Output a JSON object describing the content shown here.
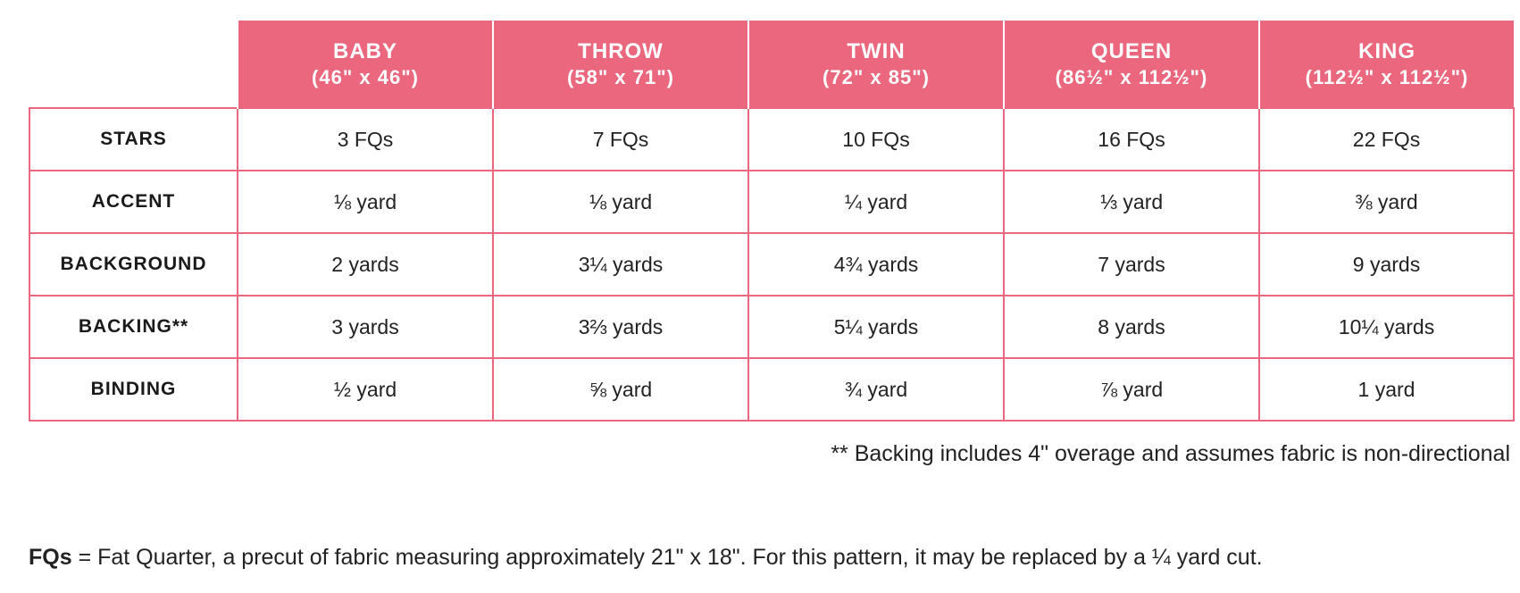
{
  "table": {
    "columns": [
      {
        "name": "BABY",
        "dims": "(46\" x 46\")"
      },
      {
        "name": "THROW",
        "dims": "(58\" x 71\")"
      },
      {
        "name": "TWIN",
        "dims": "(72\" x 85\")"
      },
      {
        "name": "QUEEN",
        "dims": "(86½\" x 112½\")"
      },
      {
        "name": "KING",
        "dims": "(112½\" x 112½\")"
      }
    ],
    "rows": [
      {
        "label": "STARS",
        "values": [
          "3 FQs",
          "7 FQs",
          "10 FQs",
          "16 FQs",
          "22 FQs"
        ]
      },
      {
        "label": "ACCENT",
        "values": [
          "⅛ yard",
          "⅛ yard",
          "¼ yard",
          "⅓ yard",
          "⅜ yard"
        ]
      },
      {
        "label": "BACKGROUND",
        "values": [
          "2 yards",
          "3¼ yards",
          "4¾ yards",
          "7 yards",
          "9 yards"
        ]
      },
      {
        "label": "BACKING**",
        "values": [
          "3 yards",
          "3⅔ yards",
          "5¼ yards",
          "8 yards",
          "10¼ yards"
        ]
      },
      {
        "label": "BINDING",
        "values": [
          "½ yard",
          "⅝ yard",
          "¾ yard",
          "⅞ yard",
          "1 yard"
        ]
      }
    ]
  },
  "notes": {
    "backing": "** Backing includes 4\" overage and assumes fabric is non-directional",
    "fq_term": "FQs",
    "fq_definition": " = Fat Quarter, a precut of fabric measuring approximately 21\" x 18\". For this pattern, it may be replaced by a ¼ yard cut."
  },
  "colors": {
    "header_bg": "#ea677e",
    "border": "#ea677e",
    "header_text": "#ffffff"
  }
}
